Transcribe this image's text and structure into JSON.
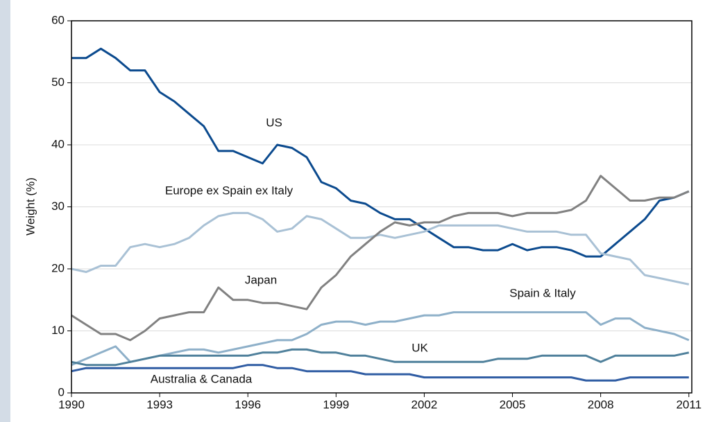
{
  "chart_data": {
    "type": "line",
    "y_axis_label": "Weight (%)",
    "x": [
      1990,
      1990.5,
      1991,
      1991.5,
      1992,
      1992.5,
      1993,
      1993.5,
      1994,
      1994.5,
      1995,
      1995.5,
      1996,
      1996.5,
      1997,
      1997.5,
      1998,
      1998.5,
      1999,
      1999.5,
      2000,
      2000.5,
      2001,
      2001.5,
      2002,
      2002.5,
      2003,
      2003.5,
      2004,
      2004.5,
      2005,
      2005.5,
      2006,
      2006.5,
      2007,
      2007.5,
      2008,
      2008.5,
      2009,
      2009.5,
      2010,
      2010.5,
      2011
    ],
    "xlim": [
      1990,
      2011.1
    ],
    "xticks": [
      1990,
      1993,
      1996,
      1999,
      2002,
      2005,
      2008,
      2011
    ],
    "ylim": [
      0,
      60
    ],
    "yticks": [
      0,
      10,
      20,
      30,
      40,
      50,
      60
    ],
    "grid": true,
    "series": [
      {
        "name": "US",
        "color": "#0b4a8e",
        "values": [
          54,
          54,
          55.5,
          54,
          52,
          52,
          48.5,
          47,
          45,
          43,
          39,
          39,
          38,
          37,
          40,
          39.5,
          38,
          34,
          33,
          31,
          30.5,
          29,
          28,
          28,
          26.5,
          25,
          23.5,
          23.5,
          23,
          23,
          24,
          23,
          23.5,
          23.5,
          23,
          22,
          22,
          24,
          26,
          28,
          31,
          31.5,
          32.5
        ]
      },
      {
        "name": "Europe ex Spain ex Italy",
        "color": "#a9c1d5",
        "values": [
          20,
          19.5,
          20.5,
          20.5,
          23.5,
          24,
          23.5,
          24,
          25,
          27,
          28.5,
          29,
          29,
          28,
          26,
          26.5,
          28.5,
          28,
          26.5,
          25,
          25,
          25.5,
          25,
          25.5,
          26,
          27,
          27,
          27,
          27,
          27,
          26.5,
          26,
          26,
          26,
          25.5,
          25.5,
          22.5,
          22,
          21.5,
          19,
          18.5,
          18,
          17.5
        ]
      },
      {
        "name": "Japan",
        "color": "#818181",
        "values": [
          12.5,
          11,
          9.5,
          9.5,
          8.5,
          10,
          12,
          12.5,
          13,
          13,
          17,
          15,
          15,
          14.5,
          14.5,
          14,
          13.5,
          17,
          19,
          22,
          24,
          26,
          27.5,
          27,
          27.5,
          27.5,
          28.5,
          29,
          29,
          29,
          28.5,
          29,
          29,
          29,
          29.5,
          31,
          35,
          33,
          31,
          31,
          31.5,
          31.5,
          32.5
        ]
      },
      {
        "name": "Spain & Italy",
        "color": "#8eb0c9",
        "values": [
          4.5,
          5.5,
          6.5,
          7.5,
          5,
          5.5,
          6,
          6.5,
          7,
          7,
          6.5,
          7,
          7.5,
          8,
          8.5,
          8.5,
          9.5,
          11,
          11.5,
          11.5,
          11,
          11.5,
          11.5,
          12,
          12.5,
          12.5,
          13,
          13,
          13,
          13,
          13,
          13,
          13,
          13,
          13,
          13,
          11,
          12,
          12,
          10.5,
          10,
          9.5,
          8.5
        ]
      },
      {
        "name": "UK",
        "color": "#4f809b",
        "values": [
          5,
          4.5,
          4.5,
          4.5,
          5,
          5.5,
          6,
          6,
          6,
          6,
          6,
          6,
          6,
          6.5,
          6.5,
          7,
          7,
          6.5,
          6.5,
          6,
          6,
          5.5,
          5,
          5,
          5,
          5,
          5,
          5,
          5,
          5.5,
          5.5,
          5.5,
          6,
          6,
          6,
          6,
          5,
          6,
          6,
          6,
          6,
          6,
          6.5
        ]
      },
      {
        "name": "Australia & Canada",
        "color": "#2f5ca3",
        "values": [
          3.5,
          4,
          4,
          4,
          4,
          4,
          4,
          4,
          4,
          4,
          4,
          4,
          4.5,
          4.5,
          4,
          4,
          3.5,
          3.5,
          3.5,
          3.5,
          3,
          3,
          3,
          3,
          2.5,
          2.5,
          2.5,
          2.5,
          2.5,
          2.5,
          2.5,
          2.5,
          2.5,
          2.5,
          2.5,
          2,
          2,
          2,
          2.5,
          2.5,
          2.5,
          2.5,
          2.5
        ]
      }
    ]
  }
}
